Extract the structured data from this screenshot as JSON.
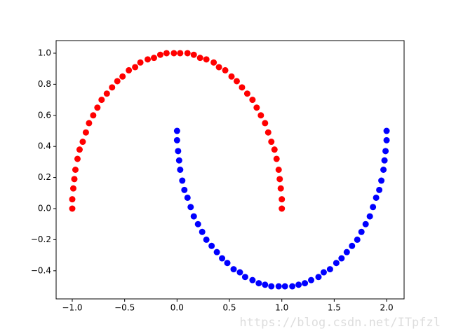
{
  "chart_data": {
    "type": "scatter",
    "xlim": [
      -1.154,
      2.167
    ],
    "ylim": [
      -0.581,
      1.081
    ],
    "xticks": [
      {
        "value": -1,
        "label": "−1.0"
      },
      {
        "value": -0.5,
        "label": "−0.5"
      },
      {
        "value": 0,
        "label": "0.0"
      },
      {
        "value": 0.5,
        "label": "0.5"
      },
      {
        "value": 1,
        "label": "1.0"
      },
      {
        "value": 1.5,
        "label": "1.5"
      },
      {
        "value": 2,
        "label": "2.0"
      }
    ],
    "yticks": [
      {
        "value": -0.4,
        "label": "−0.4"
      },
      {
        "value": -0.2,
        "label": "−0.2"
      },
      {
        "value": 0,
        "label": "0.0"
      },
      {
        "value": 0.2,
        "label": "0.2"
      },
      {
        "value": 0.4,
        "label": "0.4"
      },
      {
        "value": 0.6,
        "label": "0.6"
      },
      {
        "value": 0.8,
        "label": "0.8"
      },
      {
        "value": 1,
        "label": "1.0"
      }
    ],
    "series": [
      {
        "color": "#ff0000",
        "x": [
          1.0,
          1.0,
          0.99,
          0.98,
          0.97,
          0.95,
          0.93,
          0.9,
          0.87,
          0.84,
          0.8,
          0.76,
          0.72,
          0.67,
          0.62,
          0.57,
          0.52,
          0.46,
          0.4,
          0.35,
          0.28,
          0.22,
          0.16,
          0.1,
          0.03,
          -0.03,
          -0.1,
          -0.16,
          -0.22,
          -0.28,
          -0.35,
          -0.4,
          -0.46,
          -0.52,
          -0.57,
          -0.62,
          -0.67,
          -0.72,
          -0.76,
          -0.8,
          -0.84,
          -0.87,
          -0.9,
          -0.93,
          -0.95,
          -0.97,
          -0.98,
          -0.99,
          -1.0,
          -1.0
        ],
        "y": [
          0.0,
          0.06,
          0.13,
          0.19,
          0.25,
          0.32,
          0.38,
          0.43,
          0.49,
          0.55,
          0.6,
          0.65,
          0.7,
          0.74,
          0.78,
          0.82,
          0.85,
          0.89,
          0.91,
          0.94,
          0.96,
          0.97,
          0.99,
          1.0,
          1.0,
          1.0,
          1.0,
          0.99,
          0.97,
          0.96,
          0.94,
          0.91,
          0.89,
          0.85,
          0.82,
          0.78,
          0.74,
          0.7,
          0.65,
          0.6,
          0.55,
          0.49,
          0.43,
          0.38,
          0.32,
          0.25,
          0.19,
          0.13,
          0.06,
          0.0
        ]
      },
      {
        "color": "#0000ff",
        "x": [
          0.0,
          0.0,
          0.01,
          0.02,
          0.03,
          0.05,
          0.07,
          0.1,
          0.13,
          0.16,
          0.2,
          0.24,
          0.28,
          0.33,
          0.38,
          0.43,
          0.48,
          0.54,
          0.6,
          0.65,
          0.72,
          0.78,
          0.84,
          0.9,
          0.97,
          1.03,
          1.1,
          1.16,
          1.22,
          1.28,
          1.35,
          1.4,
          1.46,
          1.52,
          1.57,
          1.62,
          1.67,
          1.72,
          1.76,
          1.8,
          1.84,
          1.87,
          1.9,
          1.93,
          1.95,
          1.97,
          1.98,
          1.99,
          2.0,
          2.0
        ],
        "y": [
          0.5,
          0.44,
          0.37,
          0.31,
          0.25,
          0.18,
          0.12,
          0.07,
          0.01,
          -0.05,
          -0.1,
          -0.15,
          -0.2,
          -0.24,
          -0.28,
          -0.32,
          -0.35,
          -0.39,
          -0.41,
          -0.44,
          -0.46,
          -0.48,
          -0.49,
          -0.5,
          -0.5,
          -0.5,
          -0.5,
          -0.49,
          -0.48,
          -0.46,
          -0.44,
          -0.41,
          -0.39,
          -0.35,
          -0.32,
          -0.28,
          -0.24,
          -0.2,
          -0.15,
          -0.1,
          -0.05,
          0.01,
          0.07,
          0.12,
          0.18,
          0.25,
          0.31,
          0.37,
          0.44,
          0.5
        ]
      }
    ],
    "watermark": "https://blog.csdn.net/ITpfzl"
  }
}
